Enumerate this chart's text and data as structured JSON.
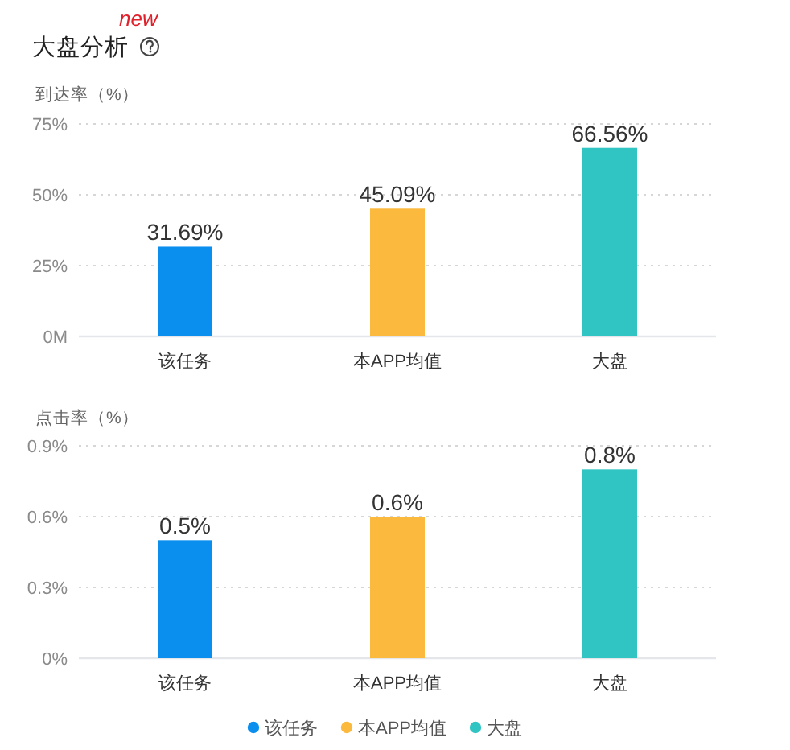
{
  "chart_data": [
    {
      "type": "bar",
      "title": "大盘分析",
      "annotations": [
        "new"
      ],
      "ylabel": "到达率（%）",
      "categories": [
        "该任务",
        "本APP均值",
        "大盘"
      ],
      "values": [
        31.69,
        45.09,
        66.56
      ],
      "colors": [
        "#0b8fef",
        "#fbba3e",
        "#30c5c3"
      ],
      "value_labels": [
        "31.69%",
        "45.09%",
        "66.56%"
      ],
      "ylim": [
        0,
        75
      ],
      "yticks": [
        {
          "value": 0,
          "label": "0M"
        },
        {
          "value": 25,
          "label": "25%"
        },
        {
          "value": 50,
          "label": "50%"
        },
        {
          "value": 75,
          "label": "75%"
        }
      ],
      "grid": "y"
    },
    {
      "type": "bar",
      "ylabel": "点击率（%）",
      "categories": [
        "该任务",
        "本APP均值",
        "大盘"
      ],
      "series": [
        {
          "name": "该任务",
          "color": "#0b8fef",
          "values": [
            0.5,
            null,
            null
          ],
          "value_labels": [
            "0.5%",
            null,
            null
          ]
        },
        {
          "name": "本APP均值",
          "color": "#fbba3e",
          "values": [
            null,
            0.6,
            null
          ],
          "value_labels": [
            null,
            "0.6%",
            null
          ]
        },
        {
          "name": "大盘",
          "color": "#30c5c3",
          "values": [
            null,
            null,
            0.8
          ],
          "value_labels": [
            null,
            null,
            "0.8%"
          ]
        }
      ],
      "ylim": [
        0,
        0.9
      ],
      "yticks": [
        {
          "value": 0,
          "label": "0%"
        },
        {
          "value": 0.3,
          "label": "0.3%"
        },
        {
          "value": 0.6,
          "label": "0.6%"
        },
        {
          "value": 0.9,
          "label": "0.9%"
        }
      ],
      "grid": "y",
      "legend": "bottom"
    }
  ]
}
